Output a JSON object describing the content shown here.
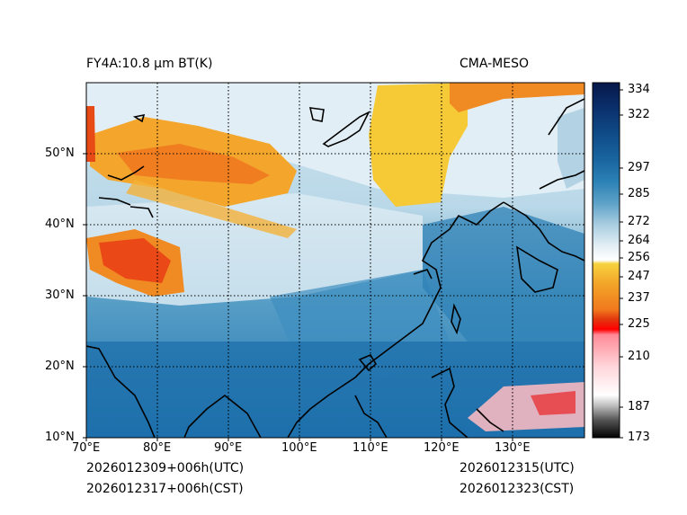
{
  "header": {
    "left_title": "FY4A:10.8 µm BT(K)",
    "right_title": "CMA-MESO"
  },
  "footer": {
    "init_utc": "2026012309+006h(UTC)",
    "init_cst": "2026012317+006h(CST)",
    "valid_utc": "2026012315(UTC)",
    "valid_cst": "2026012323(CST)"
  },
  "map": {
    "lon_range": [
      70,
      140
    ],
    "lat_range": [
      10,
      60
    ],
    "lon_ticks": [
      "70°E",
      "80°E",
      "90°E",
      "100°E",
      "110°E",
      "120°E",
      "130°E"
    ],
    "lat_ticks": [
      "10°N",
      "20°N",
      "30°N",
      "40°N",
      "50°N"
    ],
    "gridline_style": "dotted"
  },
  "colorbar": {
    "unit": "K",
    "min": 173,
    "max": 338,
    "ticks": [
      "334",
      "322",
      "297",
      "285",
      "272",
      "264",
      "256",
      "247",
      "237",
      "225",
      "210",
      "187",
      "173"
    ],
    "colors": {
      "deep_cold": "#000000",
      "cold_gray": "#8c8c8c",
      "white": "#ffffff",
      "pink": "#ffb0b8",
      "red": "#ff0000",
      "orange": "#f28c1c",
      "gold": "#f6c936",
      "light_cyan": "#cfe4ef",
      "steel_blue": "#6ea9cc",
      "ocean_blue": "#2a7fb5",
      "navy": "#0b2d6b"
    }
  }
}
